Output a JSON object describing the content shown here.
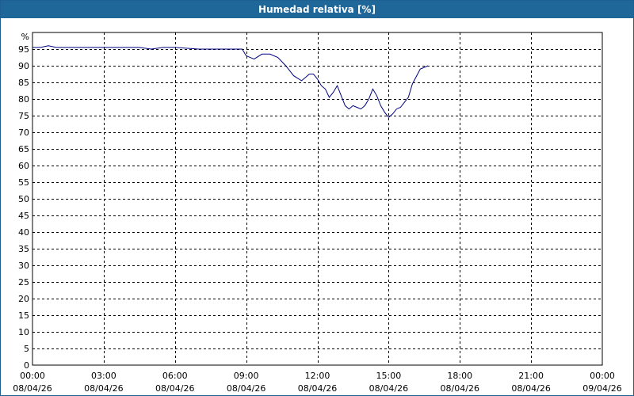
{
  "window": {
    "title": "Humedad relativa [%]"
  },
  "colors": {
    "titlebar": "#1f6699",
    "line": "#000080",
    "grid": "#000000"
  },
  "chart_data": {
    "type": "line",
    "title": "Humedad relativa [%]",
    "ylabel": "%",
    "xlabel": "",
    "grid": true,
    "legend": "none",
    "ylim": [
      0,
      100
    ],
    "yticks": [
      0,
      5,
      10,
      15,
      20,
      25,
      30,
      35,
      40,
      45,
      50,
      55,
      60,
      65,
      70,
      75,
      80,
      85,
      90,
      95
    ],
    "xlim": [
      "2026-04-08 00:00",
      "2026-04-09 00:00"
    ],
    "xticks": [
      {
        "time": "00:00",
        "date": "08/04/26"
      },
      {
        "time": "03:00",
        "date": "08/04/26"
      },
      {
        "time": "06:00",
        "date": "08/04/26"
      },
      {
        "time": "09:00",
        "date": "08/04/26"
      },
      {
        "time": "12:00",
        "date": "08/04/26"
      },
      {
        "time": "15:00",
        "date": "08/04/26"
      },
      {
        "time": "18:00",
        "date": "08/04/26"
      },
      {
        "time": "21:00",
        "date": "08/04/26"
      },
      {
        "time": "00:00",
        "date": "09/04/26"
      }
    ],
    "series": [
      {
        "x": [
          "00:00",
          "00:20",
          "00:40",
          "01:00",
          "02:00",
          "03:00",
          "03:30",
          "04:00",
          "04:30",
          "05:00",
          "05:30",
          "06:00",
          "07:00",
          "08:00",
          "08:30",
          "08:50",
          "09:00",
          "09:20",
          "09:40",
          "10:00",
          "10:20",
          "10:40",
          "11:00",
          "11:20",
          "11:40",
          "11:50",
          "12:00",
          "12:10",
          "12:20",
          "12:30",
          "12:40",
          "12:50",
          "13:00",
          "13:10",
          "13:20",
          "13:30",
          "13:40",
          "13:50",
          "14:00",
          "14:10",
          "14:20",
          "14:30",
          "14:40",
          "14:50",
          "15:00",
          "15:10",
          "15:20",
          "15:30",
          "15:40",
          "15:50",
          "16:00",
          "16:20",
          "16:40"
        ],
        "values": [
          95.5,
          95.5,
          96,
          95.5,
          95.5,
          95.5,
          95.5,
          95.5,
          95.5,
          95,
          95.5,
          95.5,
          95,
          95,
          95,
          95,
          93,
          92,
          93.5,
          93.5,
          92.5,
          90,
          87,
          85.5,
          87.5,
          87.5,
          86,
          84,
          83,
          80.5,
          82,
          84,
          81,
          78,
          77,
          78,
          77.5,
          77,
          78,
          80,
          83,
          81,
          78,
          76,
          74.5,
          75.5,
          77,
          77.5,
          79,
          80.5,
          84.5,
          89,
          90
        ]
      }
    ]
  }
}
